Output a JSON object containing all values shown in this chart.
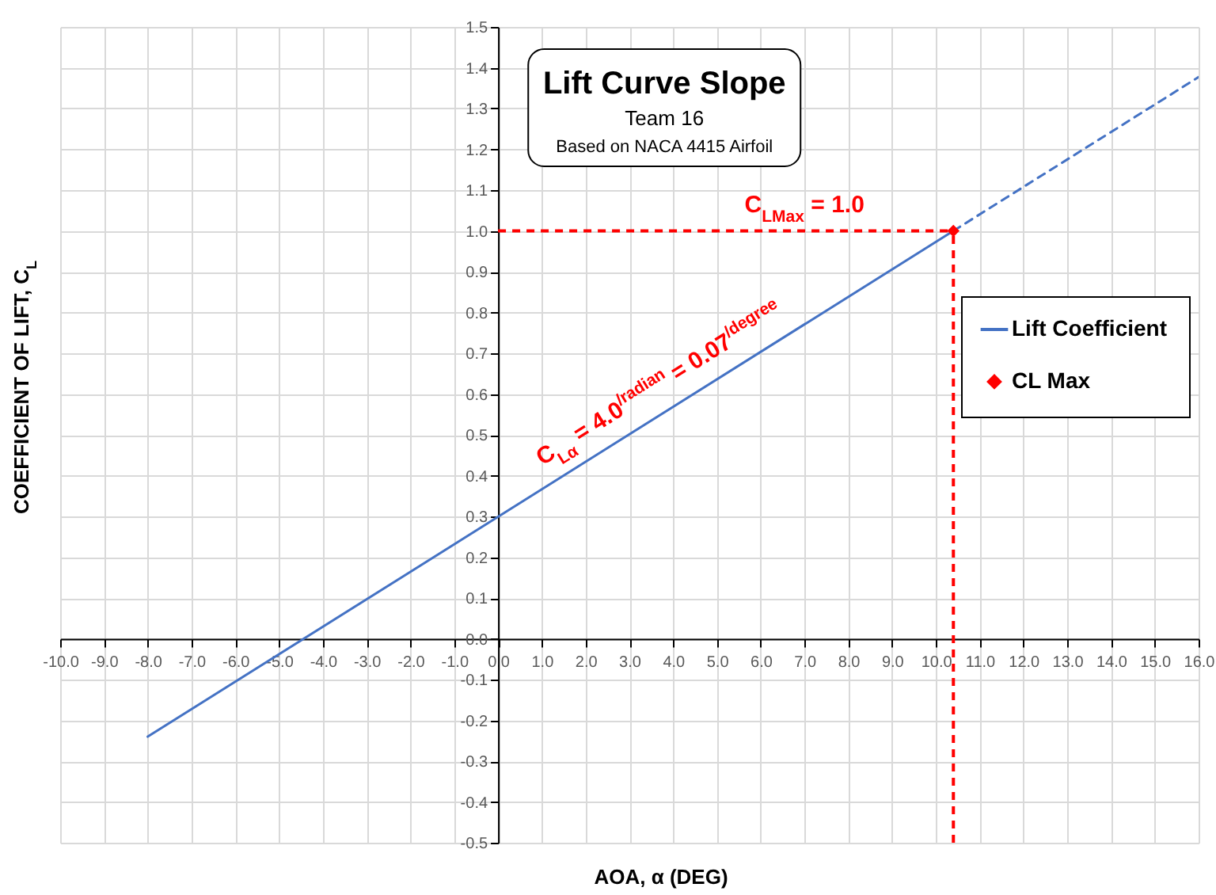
{
  "chart_data": {
    "type": "line",
    "title": "Lift Curve Slope",
    "subtitle": "Team 16",
    "xlabel": "AOA, α (DEG)",
    "ylabel": "COEFFICIENT OF LIFT, C$_{L}$",
    "annotations": [
      "Based on NACA 4415 Airfoil",
      {
        "text": "C$_{LMax}$ = 1.0",
        "x": 7.0,
        "y": 1.0
      },
      {
        "text": "C$_{Lα}$ = 4.0$^{/radian}$ = 0.07$^{/degree}$",
        "x": 4.0,
        "y": 0.57
      }
    ],
    "series": [
      {
        "name": "Lift Coefficient",
        "color": "#4472c4",
        "line_style": "solid",
        "x": [
          -8,
          10.4
        ],
        "values": [
          -0.24,
          1.0
        ]
      },
      {
        "color": "#4472c4",
        "line_style": "dashed",
        "x": [
          10.4,
          16
        ],
        "values": [
          1.0,
          1.377
        ]
      },
      {
        "name": "CL Max",
        "type": "scatter",
        "color": "#ff0000",
        "marker": "diamond",
        "x": [
          10.4
        ],
        "values": [
          1.0
        ]
      }
    ],
    "xlim": [
      -10,
      16
    ],
    "xticks": [
      {
        "value": -10,
        "label": "-10.0"
      },
      {
        "value": -9,
        "label": "-9.0"
      },
      {
        "value": -8,
        "label": "-8.0"
      },
      {
        "value": -7,
        "label": "-7.0"
      },
      {
        "value": -6,
        "label": "-6.0"
      },
      {
        "value": -5,
        "label": "-5.0"
      },
      {
        "value": -4,
        "label": "-4.0"
      },
      {
        "value": -3,
        "label": "-3.0"
      },
      {
        "value": -2,
        "label": "-2.0"
      },
      {
        "value": -1,
        "label": "-1.0"
      },
      {
        "value": 0,
        "label": "0.0"
      },
      {
        "value": 1,
        "label": "1.0"
      },
      {
        "value": 2,
        "label": "2.0"
      },
      {
        "value": 3,
        "label": "3.0"
      },
      {
        "value": 4,
        "label": "4.0"
      },
      {
        "value": 5,
        "label": "5.0"
      },
      {
        "value": 6,
        "label": "6.0"
      },
      {
        "value": 7,
        "label": "7.0"
      },
      {
        "value": 8,
        "label": "8.0"
      },
      {
        "value": 9,
        "label": "9.0"
      },
      {
        "value": 10,
        "label": "10.0"
      },
      {
        "value": 11,
        "label": "11.0"
      },
      {
        "value": 12,
        "label": "12.0"
      },
      {
        "value": 13,
        "label": "13.0"
      },
      {
        "value": 14,
        "label": "14.0"
      },
      {
        "value": 15,
        "label": "15.0"
      },
      {
        "value": 16,
        "label": "16.0"
      }
    ],
    "ylim": [
      -0.5,
      1.5
    ],
    "yticks": [
      -0.5,
      -0.4,
      -0.3,
      -0.2,
      -0.1,
      {
        "value": 0,
        "label": "0.0"
      },
      0.1,
      0.2,
      0.3,
      0.4,
      0.5,
      0.6,
      0.7,
      0.8,
      0.9,
      {
        "value": 1,
        "label": "1.0"
      },
      1.1,
      1.2,
      1.3,
      1.4,
      1.5
    ],
    "ref_lines": [
      {
        "axis": "y",
        "value": 1.0,
        "color": "#ff0000",
        "line_style": "dashed"
      },
      {
        "axis": "x",
        "value": 10.4,
        "color": "#ff0000",
        "line_style": "dashed"
      }
    ],
    "grid": true,
    "legend": "right"
  }
}
